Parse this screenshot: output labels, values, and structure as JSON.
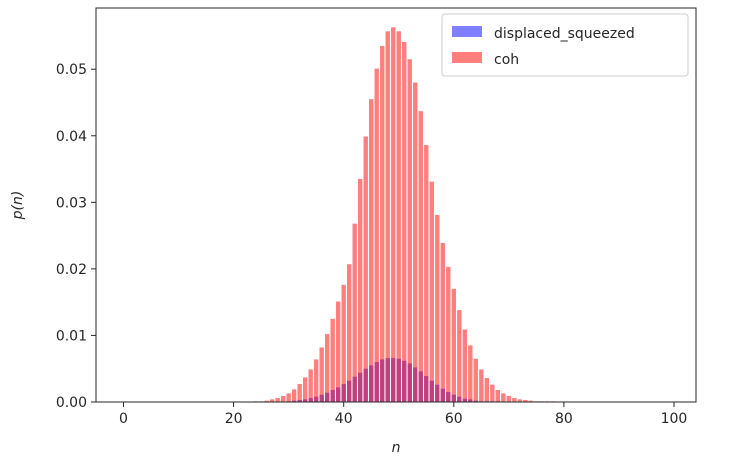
{
  "chart_data": {
    "type": "bar",
    "title": "",
    "xlabel": "n",
    "ylabel": "p(n)",
    "xlim": [
      -5,
      104
    ],
    "ylim": [
      0,
      0.0592
    ],
    "xticks": [
      0,
      20,
      40,
      60,
      80,
      100
    ],
    "yticks": [
      0.0,
      0.01,
      0.02,
      0.03,
      0.04,
      0.05
    ],
    "ytick_labels": [
      "0.00",
      "0.01",
      "0.02",
      "0.03",
      "0.04",
      "0.05"
    ],
    "grid": false,
    "legend_position": "top-right",
    "series": [
      {
        "name": "displaced_squeezed",
        "color": "#0000ff",
        "alpha": 0.5,
        "x": [
          30,
          31,
          32,
          33,
          34,
          35,
          36,
          37,
          38,
          39,
          40,
          41,
          42,
          43,
          44,
          45,
          46,
          47,
          48,
          49,
          50,
          51,
          52,
          53,
          54,
          55,
          56,
          57,
          58,
          59,
          60,
          61,
          62,
          63,
          64,
          65,
          66,
          67,
          68
        ],
        "values": [
          0.0001,
          0.0002,
          0.0003,
          0.0004,
          0.0006,
          0.0008,
          0.0011,
          0.0014,
          0.0018,
          0.0022,
          0.0027,
          0.0032,
          0.0038,
          0.0044,
          0.005,
          0.0055,
          0.006,
          0.0064,
          0.0066,
          0.0066,
          0.0065,
          0.0062,
          0.0058,
          0.0052,
          0.0046,
          0.0039,
          0.0032,
          0.0026,
          0.002,
          0.0015,
          0.0011,
          0.0008,
          0.0005,
          0.0004,
          0.0002,
          0.0001,
          0.0001,
          0.0001,
          0.0001
        ]
      },
      {
        "name": "coh",
        "color": "#ff0000",
        "alpha": 0.5,
        "x": [
          24,
          25,
          26,
          27,
          28,
          29,
          30,
          31,
          32,
          33,
          34,
          35,
          36,
          37,
          38,
          39,
          40,
          41,
          42,
          43,
          44,
          45,
          46,
          47,
          48,
          49,
          50,
          51,
          52,
          53,
          54,
          55,
          56,
          57,
          58,
          59,
          60,
          61,
          62,
          63,
          64,
          65,
          66,
          67,
          68,
          69,
          70,
          71,
          72,
          73,
          74,
          75,
          76,
          77,
          78
        ],
        "values": [
          0.0001,
          0.0001,
          0.0002,
          0.0004,
          0.0006,
          0.0009,
          0.0013,
          0.0019,
          0.0027,
          0.0037,
          0.0049,
          0.0064,
          0.0082,
          0.0102,
          0.0125,
          0.0151,
          0.0176,
          0.0207,
          0.0268,
          0.0335,
          0.0399,
          0.0455,
          0.0501,
          0.0535,
          0.0557,
          0.0563,
          0.0557,
          0.0541,
          0.0515,
          0.048,
          0.0437,
          0.0386,
          0.0331,
          0.0281,
          0.0239,
          0.0203,
          0.017,
          0.0138,
          0.0109,
          0.0085,
          0.0065,
          0.0049,
          0.0036,
          0.0026,
          0.0018,
          0.0013,
          0.0009,
          0.0006,
          0.0004,
          0.0003,
          0.0002,
          0.0001,
          0.0001,
          0.0001,
          0.0001
        ]
      }
    ]
  }
}
